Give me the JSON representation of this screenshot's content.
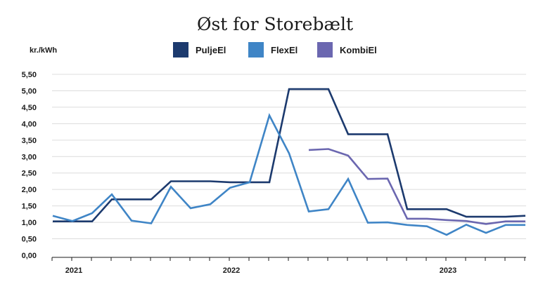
{
  "chart_data": {
    "type": "line",
    "title": "Øst for Storebælt",
    "ylabel": "kr./kWh",
    "ylim": [
      0,
      5.5
    ],
    "yticks": [
      "0,00",
      "0,50",
      "1,00",
      "1,50",
      "2,00",
      "2,50",
      "3,00",
      "3,50",
      "4,00",
      "4,50",
      "5,00",
      "5,50"
    ],
    "year_labels": [
      {
        "label": "2021",
        "x": 1
      },
      {
        "label": "2022",
        "x": 9
      },
      {
        "label": "2023",
        "x": 20
      }
    ],
    "grid": true,
    "legend_position": "top",
    "series": [
      {
        "name": "PuljeEl",
        "color": "#1c3a6e",
        "points": [
          [
            0,
            1.03
          ],
          [
            1,
            1.03
          ],
          [
            2,
            1.03
          ],
          [
            3,
            1.7
          ],
          [
            4,
            1.7
          ],
          [
            5,
            1.7
          ],
          [
            6,
            2.25
          ],
          [
            7,
            2.25
          ],
          [
            8,
            2.25
          ],
          [
            9,
            2.22
          ],
          [
            10,
            2.22
          ],
          [
            11,
            2.22
          ],
          [
            12,
            5.05
          ],
          [
            13,
            5.05
          ],
          [
            14,
            5.05
          ],
          [
            15,
            3.68
          ],
          [
            16,
            3.68
          ],
          [
            17,
            3.68
          ],
          [
            18,
            1.4
          ],
          [
            19,
            1.4
          ],
          [
            20,
            1.4
          ],
          [
            21,
            1.17
          ],
          [
            22,
            1.17
          ],
          [
            23,
            1.17
          ],
          [
            24,
            1.2
          ]
        ]
      },
      {
        "name": "FlexEl",
        "color": "#3f85c6",
        "points": [
          [
            0,
            1.2
          ],
          [
            1,
            1.04
          ],
          [
            2,
            1.28
          ],
          [
            3,
            1.85
          ],
          [
            4,
            1.05
          ],
          [
            5,
            0.97
          ],
          [
            6,
            2.08
          ],
          [
            7,
            1.43
          ],
          [
            8,
            1.55
          ],
          [
            9,
            2.05
          ],
          [
            10,
            2.22
          ],
          [
            11,
            4.25
          ],
          [
            12,
            3.1
          ],
          [
            13,
            1.33
          ],
          [
            14,
            1.4
          ],
          [
            15,
            2.32
          ],
          [
            16,
            0.99
          ],
          [
            17,
            1.0
          ],
          [
            18,
            0.92
          ],
          [
            19,
            0.88
          ],
          [
            20,
            0.62
          ],
          [
            21,
            0.93
          ],
          [
            22,
            0.68
          ],
          [
            23,
            0.92
          ],
          [
            24,
            0.92
          ]
        ]
      },
      {
        "name": "KombiEl",
        "color": "#6b67b0",
        "points": [
          [
            13,
            3.2
          ],
          [
            14,
            3.23
          ],
          [
            15,
            3.03
          ],
          [
            16,
            2.32
          ],
          [
            17,
            2.33
          ],
          [
            18,
            1.11
          ],
          [
            19,
            1.11
          ],
          [
            20,
            1.07
          ],
          [
            21,
            1.04
          ],
          [
            22,
            0.95
          ],
          [
            23,
            1.03
          ],
          [
            24,
            1.03
          ]
        ]
      }
    ]
  }
}
